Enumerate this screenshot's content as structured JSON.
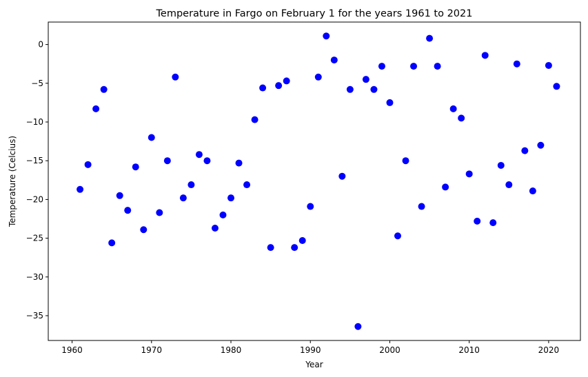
{
  "chart_data": {
    "type": "scatter",
    "title": "Temperature in Fargo on February 1 for the years 1961 to 2021",
    "xlabel": "Year",
    "ylabel": "Temperature (Celcius)",
    "xlim": [
      1957.0,
      2024.0
    ],
    "ylim": [
      -38.2,
      2.9
    ],
    "xticks": [
      1960,
      1970,
      1980,
      1990,
      2000,
      2010,
      2020
    ],
    "yticks": [
      0,
      -5,
      -10,
      -15,
      -20,
      -25,
      -30,
      -35
    ],
    "grid": false,
    "marker_color": "#0000ff",
    "x": [
      1961,
      1962,
      1963,
      1964,
      1965,
      1966,
      1967,
      1968,
      1969,
      1970,
      1971,
      1972,
      1973,
      1974,
      1975,
      1976,
      1977,
      1978,
      1979,
      1980,
      1981,
      1982,
      1983,
      1984,
      1985,
      1986,
      1987,
      1988,
      1989,
      1990,
      1991,
      1992,
      1993,
      1994,
      1995,
      1996,
      1997,
      1998,
      1999,
      2000,
      2001,
      2002,
      2003,
      2004,
      2005,
      2006,
      2007,
      2008,
      2009,
      2010,
      2011,
      2012,
      2013,
      2014,
      2015,
      2016,
      2017,
      2018,
      2019,
      2020,
      2021
    ],
    "y": [
      -18.7,
      -15.5,
      -8.3,
      -5.8,
      -25.6,
      -19.5,
      -21.4,
      -15.8,
      -23.9,
      -12.0,
      -21.7,
      -15.0,
      -4.2,
      -19.8,
      -18.1,
      -14.2,
      -15.0,
      -23.7,
      -22.0,
      -19.8,
      -15.3,
      -18.1,
      -9.7,
      -5.6,
      -26.2,
      -5.3,
      -4.7,
      -26.2,
      -25.3,
      -20.9,
      -4.2,
      1.1,
      -2.0,
      -17.0,
      -5.8,
      -36.4,
      -4.5,
      -5.8,
      -2.8,
      -7.5,
      -24.7,
      -15.0,
      -2.8,
      -20.9,
      0.8,
      -2.8,
      -18.4,
      -8.3,
      -9.5,
      -16.7,
      -22.8,
      -1.4,
      -23.0,
      -15.6,
      -18.1,
      -2.5,
      -13.7,
      -18.9,
      -13.0,
      -2.7,
      -5.4
    ]
  }
}
